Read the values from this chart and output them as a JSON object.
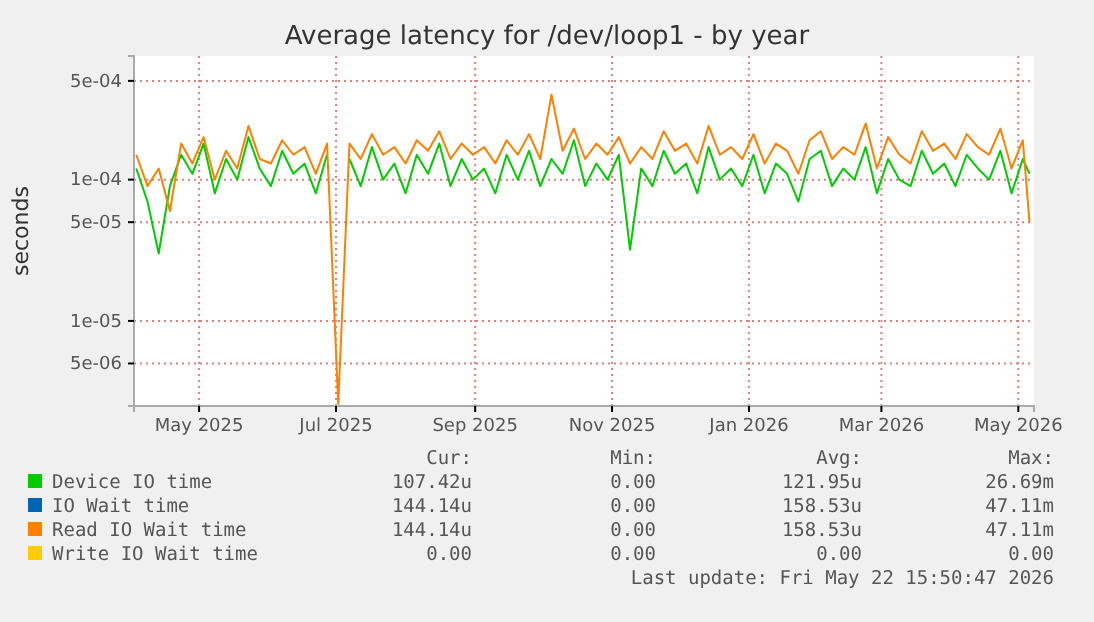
{
  "chart_data": {
    "type": "line",
    "title": "Average latency for /dev/loop1 - by year",
    "ylabel": "seconds",
    "log": true,
    "grid": true,
    "legend": "bottom",
    "line_style": "solid",
    "marker": "none",
    "xlim": [
      "2025-04-02",
      "2026-05-08"
    ],
    "xticks": [
      {
        "value": "2025-05-01",
        "label": "May 2025"
      },
      {
        "value": "2025-07-01",
        "label": "Jul 2025"
      },
      {
        "value": "2025-09-01",
        "label": "Sep 2025"
      },
      {
        "value": "2025-11-01",
        "label": "Nov 2025"
      },
      {
        "value": "2026-01-01",
        "label": "Jan 2026"
      },
      {
        "value": "2026-03-01",
        "label": "Mar 2026"
      },
      {
        "value": "2026-05-01",
        "label": "May 2026"
      }
    ],
    "ylim": [
      2.5e-06,
      0.00075
    ],
    "yticks": [
      {
        "value": 5e-06,
        "label": "5e-06"
      },
      {
        "value": 1e-05,
        "label": "1e-05"
      },
      {
        "value": 5e-05,
        "label": "5e-05"
      },
      {
        "value": 0.0001,
        "label": "1e-04"
      },
      {
        "value": 0.0005,
        "label": "5e-04"
      }
    ],
    "x": [
      "2025-04-03",
      "2025-04-08",
      "2025-04-13",
      "2025-04-18",
      "2025-04-23",
      "2025-04-28",
      "2025-05-03",
      "2025-05-08",
      "2025-05-13",
      "2025-05-18",
      "2025-05-23",
      "2025-05-28",
      "2025-06-02",
      "2025-06-07",
      "2025-06-12",
      "2025-06-17",
      "2025-06-22",
      "2025-06-27",
      "2025-07-02",
      "2025-07-07",
      "2025-07-12",
      "2025-07-17",
      "2025-07-22",
      "2025-07-27",
      "2025-08-01",
      "2025-08-06",
      "2025-08-11",
      "2025-08-16",
      "2025-08-21",
      "2025-08-26",
      "2025-08-31",
      "2025-09-05",
      "2025-09-10",
      "2025-09-15",
      "2025-09-20",
      "2025-09-25",
      "2025-09-30",
      "2025-10-05",
      "2025-10-10",
      "2025-10-15",
      "2025-10-20",
      "2025-10-25",
      "2025-10-30",
      "2025-11-04",
      "2025-11-09",
      "2025-11-14",
      "2025-11-19",
      "2025-11-24",
      "2025-11-29",
      "2025-12-04",
      "2025-12-09",
      "2025-12-14",
      "2025-12-19",
      "2025-12-24",
      "2025-12-29",
      "2026-01-03",
      "2026-01-08",
      "2026-01-13",
      "2026-01-18",
      "2026-01-23",
      "2026-01-28",
      "2026-02-02",
      "2026-02-07",
      "2026-02-12",
      "2026-02-17",
      "2026-02-22",
      "2026-02-27",
      "2026-03-04",
      "2026-03-09",
      "2026-03-14",
      "2026-03-19",
      "2026-03-24",
      "2026-03-29",
      "2026-04-03",
      "2026-04-08",
      "2026-04-13",
      "2026-04-18",
      "2026-04-23",
      "2026-04-28",
      "2026-05-03",
      "2026-05-06"
    ],
    "series": [
      {
        "name": "Device IO time",
        "color": "#00cc00",
        "values": [
          0.00012,
          7e-05,
          3e-05,
          9e-05,
          0.00015,
          0.00011,
          0.00018,
          8e-05,
          0.00014,
          0.0001,
          0.0002,
          0.00012,
          9e-05,
          0.00016,
          0.00011,
          0.00013,
          8e-05,
          0.00015,
          null,
          0.00014,
          9e-05,
          0.00017,
          0.0001,
          0.00013,
          8e-05,
          0.00015,
          0.00011,
          0.00018,
          9e-05,
          0.00014,
          0.0001,
          0.00012,
          8e-05,
          0.00015,
          0.0001,
          0.00016,
          9e-05,
          0.00014,
          0.00011,
          0.00019,
          9e-05,
          0.00013,
          0.0001,
          0.00015,
          3.2e-05,
          0.00012,
          9e-05,
          0.00016,
          0.00011,
          0.00013,
          8e-05,
          0.00017,
          0.0001,
          0.00012,
          9e-05,
          0.00015,
          8e-05,
          0.00013,
          0.00011,
          7e-05,
          0.00014,
          0.00016,
          9e-05,
          0.00012,
          0.0001,
          0.00017,
          8e-05,
          0.00014,
          0.0001,
          9e-05,
          0.00016,
          0.00011,
          0.00013,
          9e-05,
          0.00015,
          0.00012,
          0.0001,
          0.00016,
          8e-05,
          0.00014,
          0.00011
        ]
      },
      {
        "name": "IO Wait time",
        "color": "#0066b3",
        "values": [
          null,
          null,
          null,
          null,
          null,
          null,
          null,
          null,
          null,
          null,
          null,
          null,
          null,
          null,
          null,
          null,
          null,
          null,
          null,
          null,
          null,
          null,
          null,
          null,
          null,
          null,
          null,
          null,
          null,
          null,
          null,
          null,
          null,
          null,
          null,
          null,
          null,
          null,
          null,
          null,
          null,
          null,
          null,
          null,
          null,
          null,
          null,
          null,
          null,
          null,
          null,
          null,
          null,
          null,
          null,
          null,
          null,
          null,
          null,
          null,
          null,
          null,
          null,
          null,
          null,
          null,
          null,
          null,
          null,
          null,
          null,
          null,
          null,
          null,
          null,
          null,
          null,
          null,
          null,
          null,
          null
        ]
      },
      {
        "name": "Read IO Wait time",
        "color": "#ff8000",
        "values": [
          0.00015,
          9e-05,
          0.00012,
          6e-05,
          0.00018,
          0.00013,
          0.0002,
          0.0001,
          0.00016,
          0.00012,
          0.00024,
          0.00014,
          0.00013,
          0.00019,
          0.00015,
          0.00017,
          0.00011,
          0.00018,
          2.6e-06,
          0.00018,
          0.00014,
          0.00021,
          0.00015,
          0.00017,
          0.00013,
          0.00019,
          0.00016,
          0.00022,
          0.00014,
          0.00018,
          0.00015,
          0.00017,
          0.00013,
          0.00019,
          0.00015,
          0.00021,
          0.00014,
          0.0004,
          0.00016,
          0.00023,
          0.00014,
          0.00018,
          0.00015,
          0.0002,
          0.00013,
          0.00017,
          0.00014,
          0.00022,
          0.00016,
          0.00018,
          0.00013,
          0.00024,
          0.00015,
          0.00017,
          0.00014,
          0.00021,
          0.00013,
          0.00018,
          0.00016,
          0.00011,
          0.00019,
          0.00022,
          0.00014,
          0.00017,
          0.00015,
          0.00025,
          0.00012,
          0.0002,
          0.00015,
          0.00013,
          0.00022,
          0.00016,
          0.00018,
          0.00014,
          0.00021,
          0.00017,
          0.00015,
          0.00023,
          0.00012,
          0.00019,
          5e-05
        ]
      },
      {
        "name": "Write IO Wait time",
        "color": "#ffcc00",
        "values": [
          null,
          null,
          null,
          null,
          null,
          null,
          null,
          null,
          null,
          null,
          null,
          null,
          null,
          null,
          null,
          null,
          null,
          null,
          null,
          null,
          null,
          null,
          null,
          null,
          null,
          null,
          null,
          null,
          null,
          null,
          null,
          null,
          null,
          null,
          null,
          null,
          null,
          null,
          null,
          null,
          null,
          null,
          null,
          null,
          null,
          null,
          null,
          null,
          null,
          null,
          null,
          null,
          null,
          null,
          null,
          null,
          null,
          null,
          null,
          null,
          null,
          null,
          null,
          null,
          null,
          null,
          null,
          null,
          null,
          null,
          null,
          null,
          null,
          null,
          null,
          null,
          null,
          null,
          null,
          null,
          null
        ]
      }
    ],
    "annotations": [
      "Cur:",
      "Min:",
      "Avg:",
      "Max:",
      "107.42u",
      "0.00",
      "121.95u",
      "26.69m",
      "144.14u",
      "0.00",
      "158.53u",
      "47.11m",
      "144.14u",
      "0.00",
      "158.53u",
      "47.11m",
      "0.00",
      "0.00",
      "0.00",
      "0.00",
      "Last update: Fri May 22 15:50:47 2026"
    ]
  }
}
